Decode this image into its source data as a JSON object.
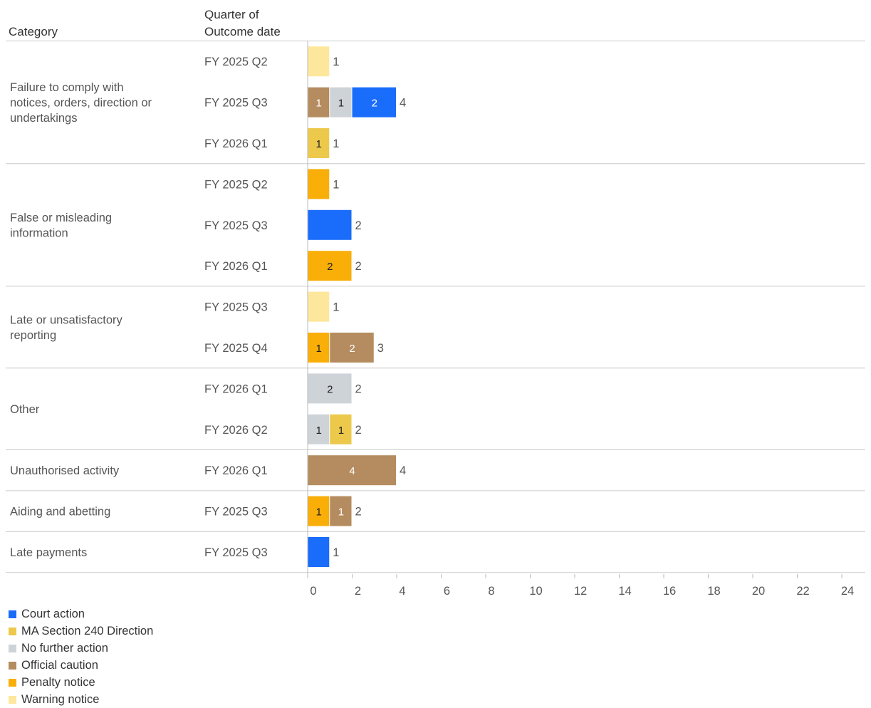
{
  "headers": {
    "category": "Category",
    "quarter_line1": "Quarter of",
    "quarter_line2": "Outcome date"
  },
  "colors": {
    "Court action": "#1a6cfb",
    "MA Section 240 Direction": "#ecc94b",
    "No further action": "#ced3d8",
    "Official caution": "#b58c5f",
    "Penalty notice": "#f9ae08",
    "Warning notice": "#fde79c"
  },
  "legend": [
    "Court action",
    "MA Section 240 Direction",
    "No further action",
    "Official caution",
    "Penalty notice",
    "Warning notice"
  ],
  "chart_data": {
    "type": "bar",
    "orientation": "horizontal",
    "stacked": true,
    "xlim": [
      0,
      25
    ],
    "xticks": [
      0,
      2,
      4,
      6,
      8,
      10,
      12,
      14,
      16,
      18,
      20,
      22,
      24
    ],
    "grid": false,
    "legend_position": "bottom-left",
    "groups": [
      {
        "category_lines": [
          "Failure to comply with",
          "notices, orders, direction or",
          "undertakings"
        ],
        "rows": [
          {
            "quarter": "FY 2025 Q2",
            "total": 1,
            "label_segments": false,
            "segments": [
              {
                "series": "Warning notice",
                "value": 1
              }
            ]
          },
          {
            "quarter": "FY 2025 Q3",
            "total": 4,
            "label_segments": true,
            "segments": [
              {
                "series": "Official caution",
                "value": 1
              },
              {
                "series": "No further action",
                "value": 1
              },
              {
                "series": "Court action",
                "value": 2
              }
            ]
          },
          {
            "quarter": "FY 2026 Q1",
            "total": 1,
            "label_segments": true,
            "segments": [
              {
                "series": "MA Section 240 Direction",
                "value": 1
              }
            ]
          }
        ]
      },
      {
        "category_lines": [
          "False or misleading",
          "information"
        ],
        "rows": [
          {
            "quarter": "FY 2025 Q2",
            "total": 1,
            "label_segments": false,
            "segments": [
              {
                "series": "Penalty notice",
                "value": 1
              }
            ]
          },
          {
            "quarter": "FY 2025 Q3",
            "total": 2,
            "label_segments": false,
            "segments": [
              {
                "series": "Court action",
                "value": 2
              }
            ]
          },
          {
            "quarter": "FY 2026 Q1",
            "total": 2,
            "label_segments": true,
            "segments": [
              {
                "series": "Penalty notice",
                "value": 2
              }
            ]
          }
        ]
      },
      {
        "category_lines": [
          "Late or unsatisfactory",
          "reporting"
        ],
        "rows": [
          {
            "quarter": "FY 2025 Q3",
            "total": 1,
            "label_segments": false,
            "segments": [
              {
                "series": "Warning notice",
                "value": 1
              }
            ]
          },
          {
            "quarter": "FY 2025 Q4",
            "total": 3,
            "label_segments": true,
            "segments": [
              {
                "series": "Penalty notice",
                "value": 1
              },
              {
                "series": "Official caution",
                "value": 2
              }
            ]
          }
        ]
      },
      {
        "category_lines": [
          "Other"
        ],
        "rows": [
          {
            "quarter": "FY 2026 Q1",
            "total": 2,
            "label_segments": true,
            "segments": [
              {
                "series": "No further action",
                "value": 2
              }
            ]
          },
          {
            "quarter": "FY 2026 Q2",
            "total": 2,
            "label_segments": true,
            "segments": [
              {
                "series": "No further action",
                "value": 1
              },
              {
                "series": "MA Section 240 Direction",
                "value": 1
              }
            ]
          }
        ]
      },
      {
        "category_lines": [
          "Unauthorised activity"
        ],
        "rows": [
          {
            "quarter": "FY 2026 Q1",
            "total": 4,
            "label_segments": true,
            "segments": [
              {
                "series": "Official caution",
                "value": 4
              }
            ]
          }
        ]
      },
      {
        "category_lines": [
          "Aiding and abetting"
        ],
        "rows": [
          {
            "quarter": "FY 2025 Q3",
            "total": 2,
            "label_segments": true,
            "segments": [
              {
                "series": "Penalty notice",
                "value": 1
              },
              {
                "series": "Official caution",
                "value": 1
              }
            ]
          }
        ]
      },
      {
        "category_lines": [
          "Late payments"
        ],
        "rows": [
          {
            "quarter": "FY 2025 Q3",
            "total": 1,
            "label_segments": false,
            "segments": [
              {
                "series": "Court action",
                "value": 1
              }
            ]
          }
        ]
      }
    ]
  }
}
